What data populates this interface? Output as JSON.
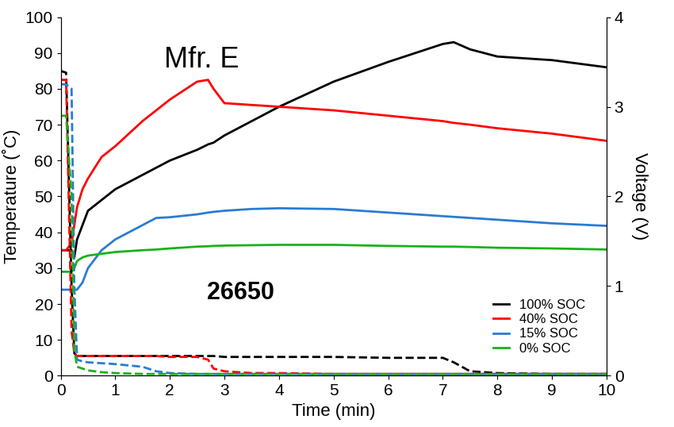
{
  "chart_data": {
    "type": "line",
    "annotations": [
      "Mfr. E",
      "26650"
    ],
    "x_label": "Time (min)",
    "y_label": "Temperature (˚C)",
    "y2_label": "Voltage (V)",
    "x": [
      0,
      0.1,
      0.2,
      0.25,
      0.3,
      0.4,
      0.5,
      0.75,
      1,
      1.5,
      1.75,
      2,
      2.5,
      2.7,
      2.8,
      3,
      3.5,
      4,
      5,
      6,
      7,
      7.2,
      7.5,
      8,
      9,
      10
    ],
    "xlim": [
      0,
      10
    ],
    "xticks": [
      0,
      1,
      2,
      3,
      4,
      5,
      6,
      7,
      8,
      9,
      10
    ],
    "ylim": [
      0,
      100
    ],
    "yticks": [
      0,
      10,
      20,
      30,
      40,
      50,
      60,
      70,
      80,
      90,
      100
    ],
    "y2lim": [
      0,
      4
    ],
    "y2ticks": [
      0,
      1,
      2,
      3,
      4
    ],
    "legend": "lower right",
    "series": [
      {
        "name": "100% SOC",
        "color": "#000000",
        "values": [
          35,
          35,
          35,
          33,
          38,
          42,
          46,
          49,
          52,
          56,
          58,
          60,
          63,
          64.5,
          65,
          67,
          71,
          75,
          82,
          87.5,
          92.5,
          93,
          91,
          89,
          88,
          86
        ],
        "voltage": [
          3.4,
          3.38,
          1.0,
          0.25,
          0.22,
          0.22,
          0.22,
          0.22,
          0.22,
          0.22,
          0.22,
          0.22,
          0.22,
          0.22,
          0.22,
          0.21,
          0.21,
          0.21,
          0.21,
          0.2,
          0.2,
          0.15,
          0.05,
          0.03,
          0.02,
          0.02
        ]
      },
      {
        "name": "40% SOC",
        "color": "#ff0000",
        "values": [
          35,
          35,
          37,
          42,
          47,
          52,
          55,
          61,
          64,
          71,
          74,
          77,
          82,
          82.5,
          80,
          76,
          75.5,
          75,
          74,
          72.5,
          71,
          70.5,
          70,
          69,
          67.5,
          65.5
        ],
        "voltage": [
          3.3,
          3.3,
          0.5,
          0.25,
          0.22,
          0.22,
          0.22,
          0.22,
          0.22,
          0.22,
          0.22,
          0.21,
          0.21,
          0.18,
          0.08,
          0.05,
          0.03,
          0.03,
          0.02,
          0.02,
          0.02,
          0.02,
          0.02,
          0.02,
          0.02,
          0.02
        ]
      },
      {
        "name": "15% SOC",
        "color": "#2a7bd3",
        "values": [
          24,
          24,
          24,
          24,
          24,
          26,
          30,
          35,
          38,
          42,
          44,
          44.2,
          45,
          45.5,
          45.7,
          46,
          46.5,
          46.7,
          46.5,
          45.5,
          44.5,
          44.3,
          44,
          43.5,
          42.5,
          41.8
        ],
        "voltage": [
          3.25,
          3.25,
          3.2,
          1.0,
          0.18,
          0.16,
          0.15,
          0.14,
          0.13,
          0.1,
          0.05,
          0.03,
          0.02,
          0.02,
          0.02,
          0.02,
          0.02,
          0.02,
          0.02,
          0.02,
          0.02,
          0.02,
          0.02,
          0.02,
          0.02,
          0.02
        ]
      },
      {
        "name": "0% SOC",
        "color": "#19b219",
        "values": [
          29,
          29,
          29,
          30,
          32,
          33,
          33.5,
          34,
          34.5,
          35,
          35.2,
          35.5,
          36,
          36.1,
          36.2,
          36.3,
          36.4,
          36.5,
          36.5,
          36.2,
          36,
          36,
          35.9,
          35.7,
          35.5,
          35.2
        ],
        "voltage": [
          2.9,
          2.9,
          2.0,
          0.3,
          0.1,
          0.08,
          0.06,
          0.04,
          0.03,
          0.02,
          0.02,
          0.02,
          0.02,
          0.02,
          0.02,
          0.02,
          0.02,
          0.02,
          0.02,
          0.02,
          0.02,
          0.02,
          0.02,
          0.02,
          0.02,
          0.02
        ]
      }
    ]
  }
}
